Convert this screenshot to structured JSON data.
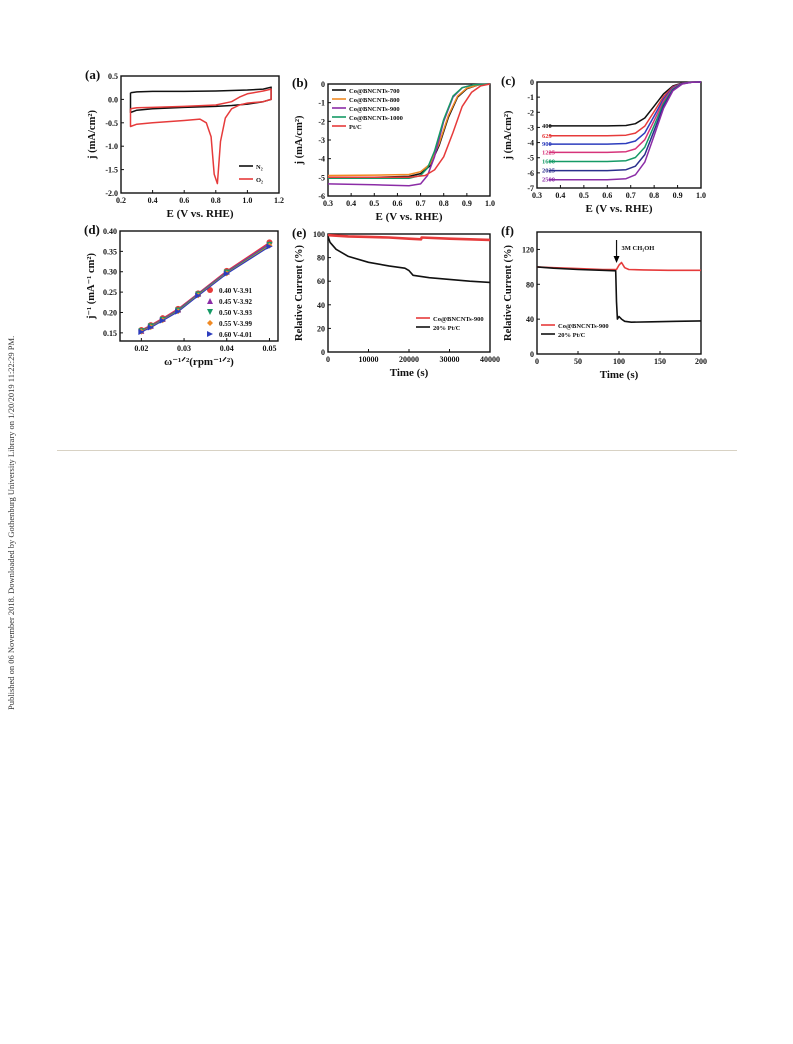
{
  "sidebar": {
    "published_note": "Published on 06 November 2018. Downloaded by Gothenburg University Library on 1/20/2019 11:22:29 PM."
  },
  "colors": {
    "black": "#111111",
    "red": "#e63b3b",
    "orange": "#f08a24",
    "purple": "#8b2ca6",
    "green": "#159a66",
    "blue": "#2d3dbd",
    "pink": "#d6337a",
    "navy": "#2b2f8c"
  },
  "chart_data": [
    {
      "panel": "(a)",
      "type": "line",
      "xlabel": "E (V vs. RHE)",
      "ylabel": "j (mA/cm²)",
      "xlim": [
        0.2,
        1.2
      ],
      "ylim": [
        -2.0,
        0.5
      ],
      "xticks": [
        "0.2",
        "0.4",
        "0.6",
        "0.8",
        "1.0",
        "1.2"
      ],
      "yticks": [
        "0.5",
        "0.0",
        "-0.5",
        "-1.0",
        "-1.5",
        "-2.0"
      ],
      "legend": "bottom-right",
      "series": [
        {
          "name": "N₂",
          "color": "black",
          "x": [
            0.26,
            0.3,
            0.4,
            0.6,
            0.8,
            0.9,
            1.0,
            1.1,
            1.15,
            1.15,
            1.1,
            1.0,
            0.9,
            0.8,
            0.6,
            0.4,
            0.3,
            0.26,
            0.26
          ],
          "y": [
            0.14,
            0.16,
            0.17,
            0.17,
            0.18,
            0.19,
            0.2,
            0.22,
            0.26,
            0.0,
            -0.05,
            -0.1,
            -0.13,
            -0.15,
            -0.17,
            -0.2,
            -0.23,
            -0.28,
            0.14
          ]
        },
        {
          "name": "O₂",
          "color": "red",
          "x": [
            0.26,
            0.3,
            0.4,
            0.6,
            0.8,
            0.9,
            0.95,
            1.0,
            1.1,
            1.15,
            1.15,
            1.1,
            1.0,
            0.95,
            0.9,
            0.86,
            0.83,
            0.81,
            0.79,
            0.77,
            0.74,
            0.7,
            0.6,
            0.4,
            0.3,
            0.26,
            0.26
          ],
          "y": [
            -0.2,
            -0.18,
            -0.17,
            -0.15,
            -0.12,
            -0.05,
            0.05,
            0.12,
            0.18,
            0.22,
            0.0,
            -0.05,
            -0.08,
            -0.12,
            -0.2,
            -0.4,
            -0.9,
            -1.8,
            -1.6,
            -0.8,
            -0.5,
            -0.42,
            -0.45,
            -0.5,
            -0.53,
            -0.58,
            -0.2
          ]
        }
      ]
    },
    {
      "panel": "(b)",
      "type": "line",
      "xlabel": "E (V vs. RHE)",
      "ylabel": "j (mA/cm²)",
      "xlim": [
        0.3,
        1.0
      ],
      "ylim": [
        -6,
        0
      ],
      "xticks": [
        "0.3",
        "0.4",
        "0.5",
        "0.6",
        "0.7",
        "0.8",
        "0.9",
        "1.0"
      ],
      "yticks": [
        "0",
        "-1",
        "-2",
        "-3",
        "-4",
        "-5",
        "-6"
      ],
      "legend": "top-left",
      "series": [
        {
          "name": "Co@BNCNTs-700",
          "color": "black",
          "x": [
            0.3,
            0.5,
            0.65,
            0.7,
            0.74,
            0.78,
            0.82,
            0.86,
            0.9,
            0.95,
            1.0
          ],
          "y": [
            -5.05,
            -5.0,
            -4.95,
            -4.8,
            -4.4,
            -3.3,
            -1.8,
            -0.7,
            -0.25,
            -0.05,
            0
          ]
        },
        {
          "name": "Co@BNCNTs-800",
          "color": "orange",
          "x": [
            0.3,
            0.5,
            0.65,
            0.7,
            0.74,
            0.78,
            0.82,
            0.86,
            0.9,
            0.95,
            1.0
          ],
          "y": [
            -4.9,
            -4.88,
            -4.85,
            -4.7,
            -4.3,
            -3.2,
            -1.7,
            -0.65,
            -0.22,
            -0.05,
            0
          ]
        },
        {
          "name": "Co@BNCNTs-900",
          "color": "purple",
          "x": [
            0.3,
            0.5,
            0.65,
            0.7,
            0.73,
            0.76,
            0.8,
            0.84,
            0.88,
            0.93,
            1.0
          ],
          "y": [
            -5.35,
            -5.4,
            -5.45,
            -5.35,
            -4.9,
            -3.9,
            -2.0,
            -0.7,
            -0.2,
            -0.04,
            0
          ]
        },
        {
          "name": "Co@BNCNTs-1000",
          "color": "green",
          "x": [
            0.3,
            0.5,
            0.65,
            0.7,
            0.73,
            0.76,
            0.8,
            0.84,
            0.88,
            0.93,
            1.0
          ],
          "y": [
            -5.05,
            -5.05,
            -5.05,
            -4.9,
            -4.5,
            -3.6,
            -1.9,
            -0.65,
            -0.2,
            -0.04,
            0
          ]
        },
        {
          "name": "Pt/C",
          "color": "red",
          "x": [
            0.3,
            0.5,
            0.65,
            0.72,
            0.76,
            0.8,
            0.84,
            0.88,
            0.92,
            0.96,
            1.0
          ],
          "y": [
            -5.0,
            -5.0,
            -5.0,
            -4.9,
            -4.6,
            -3.9,
            -2.6,
            -1.2,
            -0.45,
            -0.1,
            0
          ]
        }
      ]
    },
    {
      "panel": "(c)",
      "type": "line",
      "xlabel": "E (V vs. RHE)",
      "ylabel": "j (mA/cm²)",
      "xlim": [
        0.3,
        1.0
      ],
      "ylim": [
        -7,
        0
      ],
      "xticks": [
        "0.3",
        "0.4",
        "0.5",
        "0.6",
        "0.7",
        "0.8",
        "0.9",
        "1.0"
      ],
      "yticks": [
        "0",
        "-1",
        "-2",
        "-3",
        "-4",
        "-5",
        "-6",
        "-7"
      ],
      "series": [
        {
          "name": "400",
          "color": "black",
          "limit": -2.9
        },
        {
          "name": "625",
          "color": "red",
          "limit": -3.55
        },
        {
          "name": "900",
          "color": "blue",
          "limit": -4.1
        },
        {
          "name": "1225",
          "color": "pink",
          "limit": -4.65
        },
        {
          "name": "1600",
          "color": "green",
          "limit": -5.25
        },
        {
          "name": "2025",
          "color": "navy",
          "limit": -5.85
        },
        {
          "name": "2500",
          "color": "purple",
          "limit": -6.45
        }
      ],
      "shape": {
        "x": [
          0.35,
          0.6,
          0.68,
          0.72,
          0.76,
          0.8,
          0.84,
          0.88,
          0.92,
          0.96,
          1.0
        ],
        "fraction": [
          1.0,
          1.0,
          0.99,
          0.95,
          0.82,
          0.55,
          0.27,
          0.09,
          0.02,
          0.003,
          0
        ]
      }
    },
    {
      "panel": "(d)",
      "type": "scatter",
      "xlabel": "ω⁻¹ᐟ²(rpm⁻¹ᐟ²)",
      "ylabel": "j⁻¹ (mA⁻¹ cm²)",
      "xlim": [
        0.015,
        0.052
      ],
      "ylim": [
        0.13,
        0.4
      ],
      "xticks": [
        "0.02",
        "0.03",
        "0.04",
        "0.05"
      ],
      "yticks": [
        "0.40",
        "0.35",
        "0.30",
        "0.25",
        "0.20",
        "0.15"
      ],
      "legend": "bottom-right",
      "x": [
        0.02,
        0.0222,
        0.025,
        0.0286,
        0.0333,
        0.04,
        0.05
      ],
      "series": [
        {
          "name": "0.40 V-3.91",
          "color": "red",
          "marker": "circle",
          "y": [
            0.157,
            0.169,
            0.186,
            0.209,
            0.247,
            0.302,
            0.372
          ]
        },
        {
          "name": "0.45 V-3.92",
          "color": "purple",
          "marker": "triangle-up",
          "y": [
            0.155,
            0.167,
            0.184,
            0.207,
            0.246,
            0.3,
            0.369
          ]
        },
        {
          "name": "0.50 V-3.93",
          "color": "green",
          "marker": "triangle-down",
          "y": [
            0.154,
            0.166,
            0.182,
            0.205,
            0.244,
            0.298,
            0.366
          ]
        },
        {
          "name": "0.55 V-3.99",
          "color": "orange",
          "marker": "diamond",
          "y": [
            0.153,
            0.164,
            0.181,
            0.203,
            0.242,
            0.296,
            0.364
          ]
        },
        {
          "name": "0.60 V-4.01",
          "color": "blue",
          "marker": "triangle-right",
          "y": [
            0.152,
            0.163,
            0.18,
            0.202,
            0.241,
            0.295,
            0.362
          ]
        }
      ]
    },
    {
      "panel": "(e)",
      "type": "line",
      "xlabel": "Time (s)",
      "ylabel": "Relative Current  (%)",
      "xlim": [
        0,
        40000
      ],
      "ylim": [
        0,
        100
      ],
      "xticks": [
        "0",
        "10000",
        "20000",
        "30000",
        "40000"
      ],
      "yticks": [
        "100",
        "80",
        "60",
        "40",
        "20",
        "0"
      ],
      "legend": "bottom-right",
      "series": [
        {
          "name": "Co@BNCNTs-900",
          "color": "red",
          "x": [
            0,
            5000,
            10000,
            15000,
            20000,
            23000,
            23100,
            30000,
            35000,
            40000
          ],
          "y": [
            99,
            98,
            97.5,
            97,
            96,
            95.5,
            97,
            96,
            95.5,
            95
          ]
        },
        {
          "name": "20% Pt/C",
          "color": "black",
          "x": [
            0,
            500,
            2000,
            5000,
            10000,
            15000,
            19000,
            20000,
            21000,
            25000,
            30000,
            35000,
            40000
          ],
          "y": [
            98,
            93,
            87,
            81,
            76,
            73,
            71,
            69,
            65,
            63,
            61.5,
            60,
            59
          ]
        }
      ]
    },
    {
      "panel": "(f)",
      "type": "line",
      "xlabel": "Time (s)",
      "ylabel": "Relative Current  (%)",
      "xlim": [
        0,
        200
      ],
      "ylim": [
        0,
        140
      ],
      "xticks": [
        "0",
        "50",
        "100",
        "150",
        "200"
      ],
      "yticks": [
        "120",
        "80",
        "40",
        "0"
      ],
      "legend": "bottom-left",
      "annotation": {
        "text": "3M CH₃OH",
        "x": 97
      },
      "series": [
        {
          "name": "Co@BNCNTs-900",
          "color": "red",
          "x": [
            0,
            20,
            50,
            80,
            97,
            100,
            103,
            107,
            112,
            130,
            160,
            200
          ],
          "y": [
            100,
            99,
            98,
            97,
            97,
            102,
            105,
            99,
            97,
            96.5,
            96,
            96
          ]
        },
        {
          "name": "20% Pt/C",
          "color": "black",
          "x": [
            0,
            20,
            50,
            80,
            96,
            97,
            98,
            100,
            103,
            107,
            115,
            140,
            170,
            200
          ],
          "y": [
            100,
            98.5,
            97,
            96,
            95.5,
            60,
            40,
            43,
            40,
            37.5,
            36.5,
            37,
            37.5,
            38
          ]
        }
      ]
    }
  ]
}
